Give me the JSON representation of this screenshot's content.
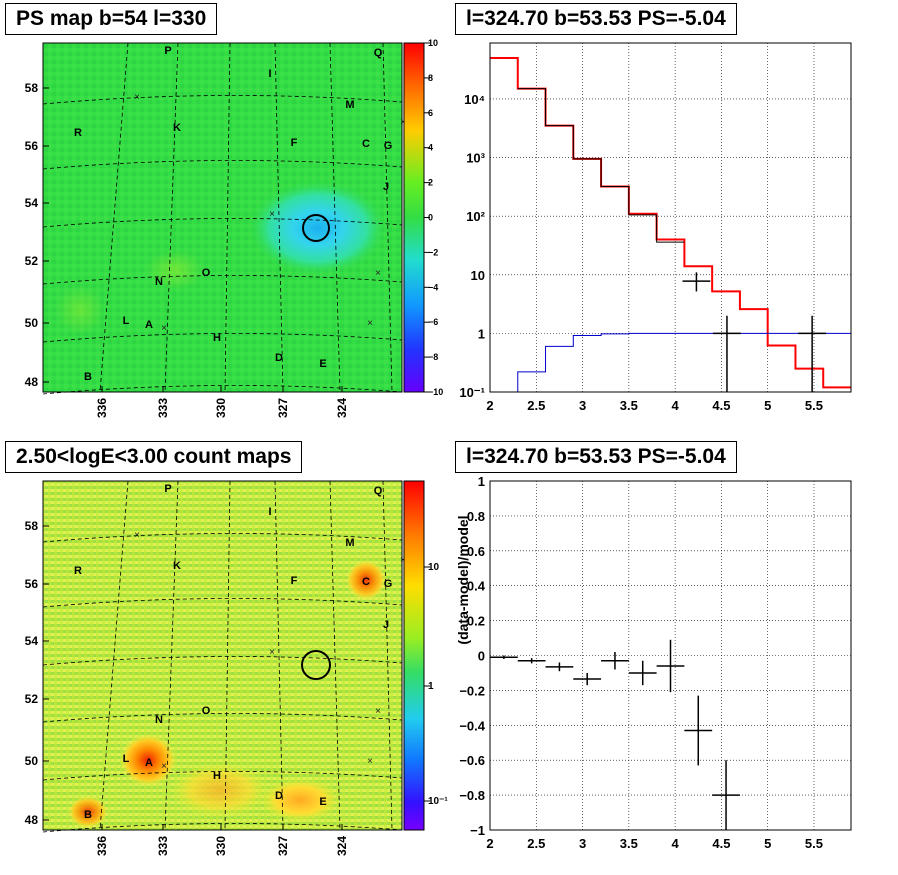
{
  "panels": {
    "ps_map": {
      "title": "PS map b=54 l=330",
      "y_ticks": [
        "58",
        "56",
        "54",
        "52",
        "50",
        "48"
      ],
      "x_ticks": [
        "336",
        "333",
        "330",
        "327",
        "324"
      ],
      "colorbar_ticks": [
        "10",
        "8",
        "6",
        "4",
        "2",
        "0",
        "−2",
        "−4",
        "−6",
        "−8",
        "−10"
      ],
      "source_labels": [
        "P",
        "Q",
        "I",
        "M",
        "R",
        "K",
        "C",
        "G",
        "F",
        "J",
        "O",
        "N",
        "L",
        "A",
        "H",
        "D",
        "E",
        "B"
      ]
    },
    "count_map": {
      "title": "2.50<logE<3.00 count maps",
      "y_ticks": [
        "58",
        "56",
        "54",
        "52",
        "50",
        "48"
      ],
      "x_ticks": [
        "336",
        "333",
        "330",
        "327",
        "324"
      ],
      "colorbar_ticks": [
        "10",
        "1",
        "10⁻¹"
      ],
      "source_labels": [
        "P",
        "Q",
        "I",
        "M",
        "R",
        "K",
        "C",
        "G",
        "F",
        "J",
        "O",
        "N",
        "L",
        "A",
        "H",
        "D",
        "E",
        "B"
      ]
    },
    "spectrum": {
      "title": "l=324.70 b=53.53 PS=-5.04"
    },
    "residual": {
      "title": "l=324.70 b=53.53 PS=-5.04"
    }
  },
  "chart_data": [
    {
      "type": "heatmap",
      "title": "PS map b=54 l=330",
      "xlabel": "",
      "ylabel": "",
      "xlim": [
        339,
        321
      ],
      "ylim": [
        47.6,
        59.5
      ],
      "zlim": [
        -10,
        10
      ],
      "colors": {
        "background": "#33dd44",
        "cool_spot": "#22ccee",
        "palette_low": "#6600ff",
        "palette_high": "#ff0000"
      },
      "marker_circle": {
        "l": 324.7,
        "b": 53.2
      }
    },
    {
      "type": "line",
      "title": "l=324.70 b=53.53 PS=-5.04",
      "xlabel": "",
      "ylabel": "",
      "xlim": [
        2,
        5.9
      ],
      "ylim": [
        0.1,
        90000
      ],
      "log_y": true,
      "grid": true,
      "x_ticks": [
        "2",
        "2.5",
        "3",
        "3.5",
        "4",
        "4.5",
        "5",
        "5.5"
      ],
      "y_ticks": [
        "10⁻¹",
        "1",
        "10",
        "10²",
        "10³",
        "10⁴"
      ],
      "series": [
        {
          "color": "#ff0000",
          "bin_edges": [
            2.0,
            2.3,
            2.6,
            2.9,
            3.2,
            3.5,
            3.8,
            4.1,
            4.4,
            4.7,
            5.0,
            5.3,
            5.6,
            5.9
          ],
          "values": [
            50000,
            15000,
            3500,
            950,
            320,
            110,
            40,
            14,
            5.2,
            2.6,
            0.62,
            0.25,
            0.12
          ]
        },
        {
          "color": "#0000cc",
          "bin_edges": [
            2.0,
            2.3,
            2.6,
            2.9,
            3.2,
            3.5,
            3.8,
            4.1,
            4.4,
            4.7,
            5.0,
            5.3,
            5.6,
            5.9
          ],
          "values": [
            0.1,
            0.22,
            0.6,
            0.92,
            0.98,
            1.0,
            1.0,
            1.0,
            1.0,
            1.0,
            1.0,
            1.0,
            1.0
          ]
        },
        {
          "color": "#000000",
          "bin_edges": [
            2.3,
            2.6,
            2.9,
            3.2,
            3.5,
            3.8,
            4.1
          ],
          "values": [
            15000,
            3500,
            950,
            320,
            105,
            36
          ]
        },
        {
          "color": "#000000",
          "points": [
            {
              "x": 4.23,
              "y": 7.8,
              "ylo": 5.2,
              "yhi": 11,
              "xerr": 0.15
            },
            {
              "x": 4.56,
              "y": 1.0,
              "ylo": 0.1,
              "yhi": 2.0,
              "xerr": 0.15
            },
            {
              "x": 5.48,
              "y": 1.0,
              "ylo": 0.1,
              "yhi": 2.0,
              "xerr": 0.15
            }
          ]
        }
      ]
    },
    {
      "type": "scatter",
      "title": "l=324.70 b=53.53 PS=-5.04",
      "xlabel": "",
      "ylabel": "(data-model)/model",
      "xlim": [
        2,
        5.9
      ],
      "ylim": [
        -1,
        1
      ],
      "grid": true,
      "x_ticks": [
        "2",
        "2.5",
        "3",
        "3.5",
        "4",
        "4.5",
        "5",
        "5.5"
      ],
      "y_ticks": [
        "−1",
        "−0.8",
        "−0.6",
        "−0.4",
        "−0.2",
        "0",
        "0.2",
        "0.4",
        "0.6",
        "0.8",
        "1"
      ],
      "points": [
        {
          "x": 2.15,
          "y": -0.01,
          "ylo": -0.02,
          "yhi": 0.0,
          "xerr": 0.15
        },
        {
          "x": 2.45,
          "y": -0.03,
          "ylo": -0.045,
          "yhi": -0.015,
          "xerr": 0.15
        },
        {
          "x": 2.75,
          "y": -0.065,
          "ylo": -0.09,
          "yhi": -0.04,
          "xerr": 0.15
        },
        {
          "x": 3.05,
          "y": -0.135,
          "ylo": -0.17,
          "yhi": -0.1,
          "xerr": 0.15
        },
        {
          "x": 3.35,
          "y": -0.03,
          "ylo": -0.08,
          "yhi": 0.02,
          "xerr": 0.15
        },
        {
          "x": 3.65,
          "y": -0.1,
          "ylo": -0.17,
          "yhi": -0.03,
          "xerr": 0.15
        },
        {
          "x": 3.95,
          "y": -0.06,
          "ylo": -0.21,
          "yhi": 0.09,
          "xerr": 0.15
        },
        {
          "x": 4.25,
          "y": -0.43,
          "ylo": -0.63,
          "yhi": -0.23,
          "xerr": 0.15
        },
        {
          "x": 4.55,
          "y": -0.8,
          "ylo": -1.0,
          "yhi": -0.6,
          "xerr": 0.15
        }
      ]
    }
  ]
}
